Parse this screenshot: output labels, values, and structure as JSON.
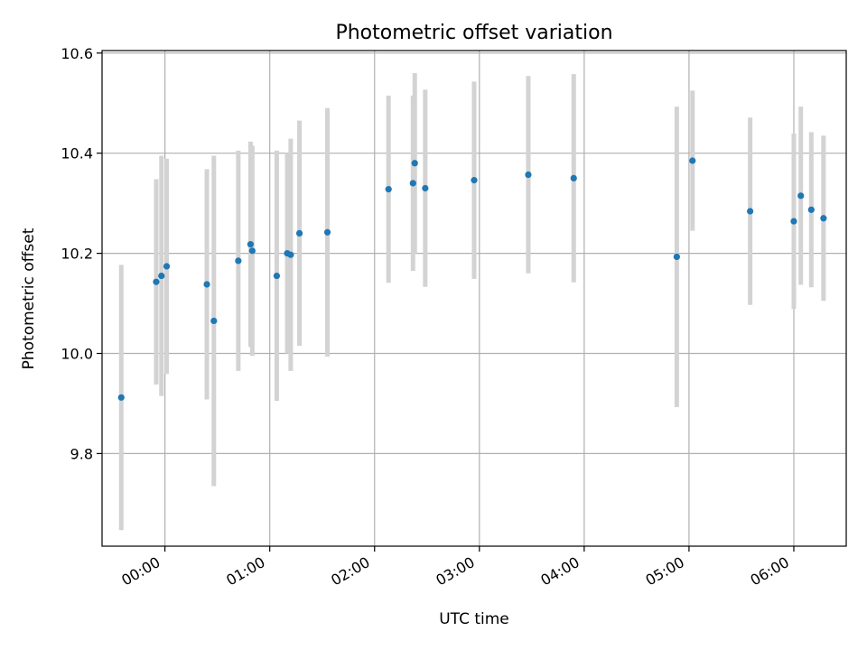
{
  "chart_data": {
    "type": "scatter",
    "title": "Photometric offset variation",
    "xlabel": "UTC time",
    "ylabel": "Photometric offset",
    "x_format": "HH:MM",
    "x_ticks": [
      "00:00",
      "01:00",
      "02:00",
      "03:00",
      "04:00",
      "05:00",
      "06:00"
    ],
    "y_ticks": [
      "9.8",
      "10.0",
      "10.2",
      "10.4",
      "10.6"
    ],
    "xlim": [
      "-00:36",
      "06:30"
    ],
    "ylim": [
      9.615,
      10.605
    ],
    "grid": true,
    "point_color": "#1f77b4",
    "errorbar_color": "#d3d3d3",
    "points": [
      {
        "t": "-00:25",
        "y": 9.912,
        "err": 0.265
      },
      {
        "t": "-00:05",
        "y": 10.143,
        "err": 0.205
      },
      {
        "t": "-00:02",
        "y": 10.155,
        "err": 0.24
      },
      {
        "t": "00:01",
        "y": 10.174,
        "err": 0.215
      },
      {
        "t": "00:24",
        "y": 10.138,
        "err": 0.23
      },
      {
        "t": "00:28",
        "y": 10.065,
        "err": 0.33
      },
      {
        "t": "00:42",
        "y": 10.185,
        "err": 0.22
      },
      {
        "t": "00:49",
        "y": 10.218,
        "err": 0.205
      },
      {
        "t": "00:50",
        "y": 10.205,
        "err": 0.21
      },
      {
        "t": "01:04",
        "y": 10.155,
        "err": 0.25
      },
      {
        "t": "01:10",
        "y": 10.2,
        "err": 0.2
      },
      {
        "t": "01:12",
        "y": 10.197,
        "err": 0.232
      },
      {
        "t": "01:17",
        "y": 10.24,
        "err": 0.225
      },
      {
        "t": "01:33",
        "y": 10.242,
        "err": 0.248
      },
      {
        "t": "02:08",
        "y": 10.328,
        "err": 0.187
      },
      {
        "t": "02:22",
        "y": 10.34,
        "err": 0.175
      },
      {
        "t": "02:23",
        "y": 10.38,
        "err": 0.18
      },
      {
        "t": "02:29",
        "y": 10.33,
        "err": 0.197
      },
      {
        "t": "02:57",
        "y": 10.346,
        "err": 0.197
      },
      {
        "t": "03:28",
        "y": 10.357,
        "err": 0.197
      },
      {
        "t": "03:54",
        "y": 10.35,
        "err": 0.208
      },
      {
        "t": "04:53",
        "y": 10.193,
        "err": 0.3
      },
      {
        "t": "05:02",
        "y": 10.385,
        "err": 0.14
      },
      {
        "t": "05:35",
        "y": 10.284,
        "err": 0.187
      },
      {
        "t": "06:00",
        "y": 10.264,
        "err": 0.175
      },
      {
        "t": "06:04",
        "y": 10.315,
        "err": 0.178
      },
      {
        "t": "06:10",
        "y": 10.287,
        "err": 0.155
      },
      {
        "t": "06:17",
        "y": 10.27,
        "err": 0.165
      }
    ]
  }
}
